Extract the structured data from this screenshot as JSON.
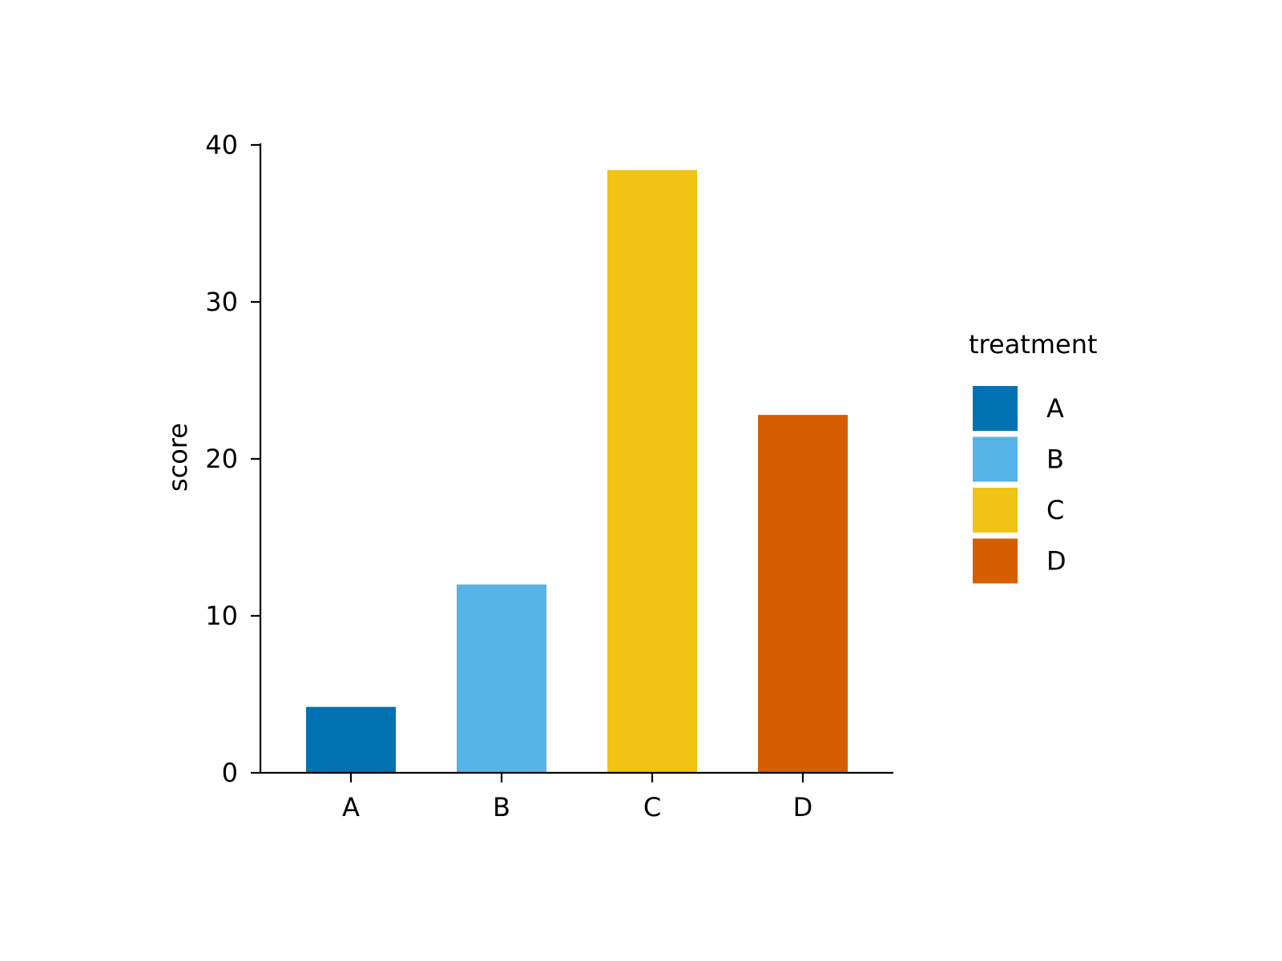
{
  "chart_data": {
    "type": "bar",
    "categories": [
      "A",
      "B",
      "C",
      "D"
    ],
    "values": [
      4.2,
      12.0,
      38.4,
      22.8
    ],
    "colors": [
      "#0072B2",
      "#56B4E9",
      "#F0C314",
      "#D55E00"
    ],
    "xlabel": "",
    "ylabel": "score",
    "ylim": [
      0,
      40
    ],
    "yticks": [
      0,
      10,
      20,
      30,
      40
    ],
    "grid": false,
    "legend": {
      "title": "treatment",
      "placement": "right",
      "items": [
        {
          "label": "A",
          "color": "#0072B2"
        },
        {
          "label": "B",
          "color": "#56B4E9"
        },
        {
          "label": "C",
          "color": "#F0C314"
        },
        {
          "label": "D",
          "color": "#D55E00"
        }
      ]
    }
  }
}
